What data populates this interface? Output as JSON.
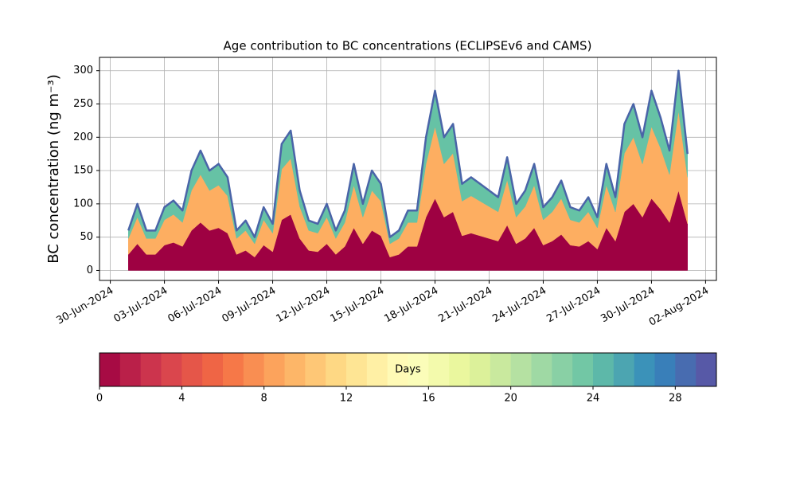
{
  "chart_data": {
    "type": "stacked_area",
    "title": "Age contribution to BC concentrations (ECLIPSEv6 and CAMS)",
    "ylabel": "BC concentration (ng m⁻³)",
    "x": [
      1,
      1.5,
      2,
      2.5,
      3,
      3.5,
      4,
      4.5,
      5,
      5.5,
      6,
      6.5,
      7,
      7.5,
      8,
      8.5,
      9,
      9.5,
      10,
      10.5,
      11,
      11.5,
      12,
      12.5,
      13,
      13.5,
      14,
      14.5,
      15,
      15.5,
      16,
      16.5,
      17,
      17.5,
      18,
      18.5,
      19,
      19.5,
      20,
      20.5,
      21,
      21.5,
      22,
      22.5,
      23,
      23.5,
      24,
      24.5,
      25,
      25.5,
      26,
      26.5,
      27,
      27.5,
      28,
      28.5,
      29,
      29.5,
      30,
      30.5,
      31,
      31.5,
      32
    ],
    "series": [
      {
        "color": "#9e0142",
        "values": [
          24,
          40,
          24,
          24,
          38,
          42,
          36,
          60,
          72,
          60,
          64,
          56,
          24,
          30,
          20,
          38,
          28,
          76,
          84,
          48,
          30,
          28,
          40,
          24,
          36,
          64,
          40,
          60,
          52,
          20,
          24,
          36,
          36,
          80,
          108,
          80,
          88,
          52,
          56,
          52,
          48,
          44,
          68,
          40,
          48,
          64,
          38,
          44,
          54,
          38,
          36,
          44,
          32,
          64,
          44,
          88,
          100,
          80,
          108,
          92,
          72,
          120,
          70
        ]
      },
      {
        "color": "#fdae61",
        "values": [
          24,
          40,
          24,
          24,
          38,
          42,
          36,
          60,
          72,
          60,
          64,
          56,
          24,
          30,
          20,
          38,
          28,
          76,
          84,
          48,
          30,
          28,
          40,
          24,
          36,
          64,
          40,
          60,
          52,
          20,
          24,
          36,
          36,
          80,
          108,
          80,
          88,
          52,
          56,
          52,
          48,
          44,
          68,
          40,
          48,
          64,
          38,
          44,
          54,
          38,
          36,
          44,
          32,
          64,
          44,
          88,
          100,
          80,
          108,
          92,
          72,
          120,
          70
        ]
      },
      {
        "color": "#66c2a5",
        "values": [
          12,
          20,
          12,
          12,
          19,
          21,
          18,
          30,
          36,
          30,
          32,
          28,
          12,
          15,
          10,
          19,
          14,
          38,
          42,
          24,
          15,
          14,
          20,
          12,
          18,
          32,
          20,
          30,
          26,
          10,
          12,
          18,
          18,
          40,
          54,
          40,
          44,
          26,
          28,
          26,
          24,
          22,
          34,
          20,
          24,
          32,
          19,
          22,
          27,
          19,
          18,
          22,
          16,
          32,
          22,
          44,
          50,
          40,
          54,
          46,
          36,
          60,
          35
        ]
      }
    ],
    "edge_color": "#4a64a8",
    "xlim": [
      -0.6,
      33.6
    ],
    "xticks": [
      {
        "value": 0,
        "label": "30-Jun-2024"
      },
      {
        "value": 3,
        "label": "03-Jul-2024"
      },
      {
        "value": 6,
        "label": "06-Jul-2024"
      },
      {
        "value": 9,
        "label": "09-Jul-2024"
      },
      {
        "value": 12,
        "label": "12-Jul-2024"
      },
      {
        "value": 15,
        "label": "15-Jul-2024"
      },
      {
        "value": 18,
        "label": "18-Jul-2024"
      },
      {
        "value": 21,
        "label": "21-Jul-2024"
      },
      {
        "value": 24,
        "label": "24-Jul-2024"
      },
      {
        "value": 27,
        "label": "27-Jul-2024"
      },
      {
        "value": 30,
        "label": "30-Jul-2024"
      },
      {
        "value": 33,
        "label": "02-Aug-2024"
      }
    ],
    "ylim": [
      -15,
      320
    ],
    "yticks": [
      0,
      50,
      100,
      150,
      200,
      250,
      300
    ],
    "grid": true,
    "colorbar": {
      "label": "Days",
      "clim": [
        0,
        30
      ],
      "n_bins": 30,
      "colormap": [
        "#9e0142",
        "#d53e4f",
        "#f46d43",
        "#fdae61",
        "#fee08b",
        "#ffffbf",
        "#e6f598",
        "#abdda4",
        "#66c2a5",
        "#3288bd",
        "#5e4fa2"
      ],
      "ticks": [
        0,
        4,
        8,
        12,
        16,
        20,
        24,
        28
      ]
    }
  }
}
